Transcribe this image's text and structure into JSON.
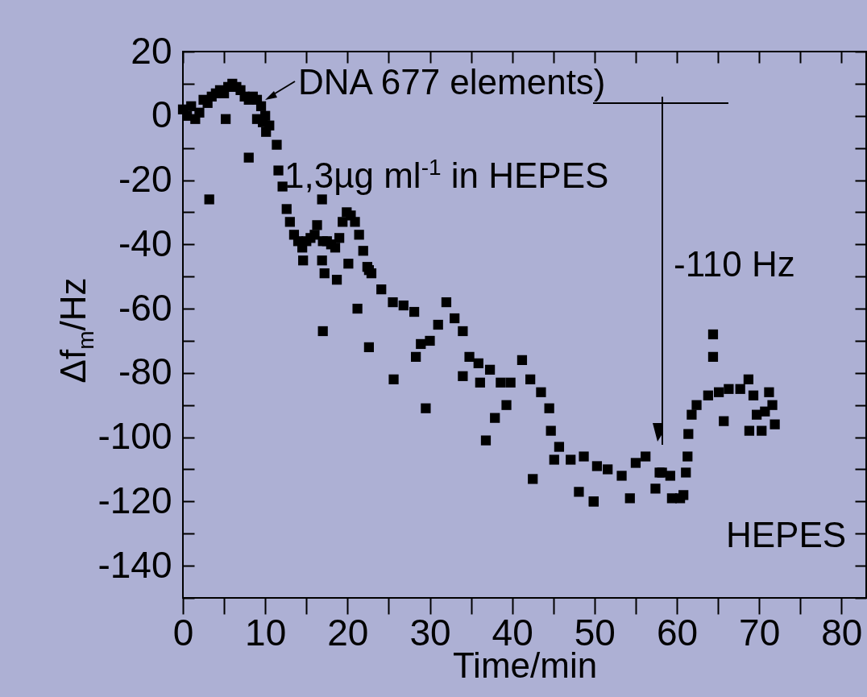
{
  "chart_data": {
    "type": "scatter",
    "xlabel": "Time/min",
    "ylabel": "Δf$_{m}$/Hz",
    "color": "#000000",
    "marker": "square",
    "annotations": [
      "DNA 677 elements)",
      "1,3µg ml$^{-1}$ in HEPES",
      "-110 Hz",
      "HEPES"
    ],
    "xlim": [
      0,
      83
    ],
    "ylim": [
      -150,
      20
    ],
    "xticks": [
      0,
      {
        "value": 5,
        "label": null
      },
      10,
      {
        "value": 15,
        "label": null
      },
      20,
      {
        "value": 25,
        "label": null
      },
      30,
      {
        "value": 35,
        "label": null
      },
      40,
      {
        "value": 45,
        "label": null
      },
      50,
      {
        "value": 55,
        "label": null
      },
      60,
      {
        "value": 65,
        "label": null
      },
      70,
      {
        "value": 75,
        "label": null
      },
      80
    ],
    "yticks": [
      {
        "value": -150,
        "label": null
      },
      -140,
      {
        "value": -130,
        "label": null
      },
      -120,
      {
        "value": -110,
        "label": null
      },
      -100,
      {
        "value": -90,
        "label": null
      },
      -80,
      {
        "value": -70,
        "label": null
      },
      -60,
      {
        "value": -50,
        "label": null
      },
      -40,
      {
        "value": -30,
        "label": null
      },
      -20,
      {
        "value": -10,
        "label": null
      },
      0,
      {
        "value": 10,
        "label": null
      },
      20
    ],
    "x": [
      0,
      0.5,
      1,
      1.5,
      2,
      2.5,
      3,
      3.5,
      4,
      4.5,
      5,
      5.5,
      6,
      6.5,
      7,
      7.5,
      8,
      8.5,
      9,
      9.5,
      10,
      10.5,
      3.2,
      8.0,
      5.2,
      9.0,
      9.7,
      10.1,
      11.4,
      11.6,
      12.1,
      12.6,
      13,
      13.5,
      14,
      14.5,
      15,
      15.5,
      16,
      16.3,
      17,
      17.5,
      18,
      18.5,
      19,
      19.4,
      19.9,
      20.4,
      20.9,
      21.4,
      21.9,
      22.4,
      22.9,
      14.6,
      16.9,
      16.9,
      17.2,
      18.7,
      20.1,
      21.2,
      17,
      22.6,
      24.1,
      25.5,
      26.8,
      28.1,
      28.9,
      30,
      31,
      32,
      33,
      34,
      34.8,
      35.9,
      37.3,
      38.6,
      39.8,
      41.2,
      42.2,
      43.5,
      44.5,
      44.7,
      45.7,
      47.1,
      48.7,
      50.3,
      51.6,
      53.3,
      55,
      56.2,
      57.9,
      58.2,
      22.6,
      25.6,
      29.5,
      28.3,
      34,
      36.1,
      37.9,
      36.8,
      39.3,
      42.5,
      48.1,
      49.9,
      54.3,
      57.4,
      45.1,
      59.2,
      60.8,
      61.1,
      61.3,
      61.4,
      61.8,
      62.4,
      63.8,
      65.1,
      66.3,
      67.7,
      68.7,
      69.3,
      69.7,
      70.7,
      71.2,
      71.9,
      71.6,
      64.4,
      64.4,
      65.7,
      68.8,
      70.3,
      49.9,
      60.4,
      59.4
    ],
    "values": [
      2,
      0,
      3,
      -1,
      1,
      5,
      4,
      6,
      7,
      8,
      7,
      9,
      10,
      9,
      8,
      6,
      5,
      6,
      5,
      3,
      0,
      -3,
      -26,
      -13,
      -1,
      -1,
      -2,
      -5,
      -9,
      -17,
      -22,
      -29,
      -33,
      -37,
      -39,
      -41,
      -39,
      -38,
      -37,
      -34,
      -39,
      -39,
      -40,
      -41,
      -38,
      -33,
      -30,
      -31,
      -33,
      -37,
      -42,
      -47,
      -49,
      -45,
      -26,
      -45,
      -49,
      -51,
      -46,
      -60,
      -67,
      -48,
      -54,
      -58,
      -59,
      -61,
      -71,
      -70,
      -65,
      -58,
      -63,
      -67,
      -75,
      -77,
      -79,
      -83,
      -83,
      -76,
      -82,
      -86,
      -91,
      -98,
      -103,
      -107,
      -106,
      -109,
      -110,
      -112,
      -108,
      -106,
      -111,
      -111,
      -72,
      -82,
      -91,
      -75,
      -81,
      -83,
      -94,
      -101,
      -90,
      -113,
      -117,
      -120,
      -119,
      -116,
      -107,
      -112,
      -118,
      -111,
      -106,
      -99,
      -93,
      -90,
      -87,
      -86,
      -85,
      -85,
      -82,
      -87,
      -93,
      -92,
      -86,
      -96,
      -90,
      -68,
      -75,
      -95,
      -98,
      -98,
      -120,
      -119,
      -119
    ]
  }
}
